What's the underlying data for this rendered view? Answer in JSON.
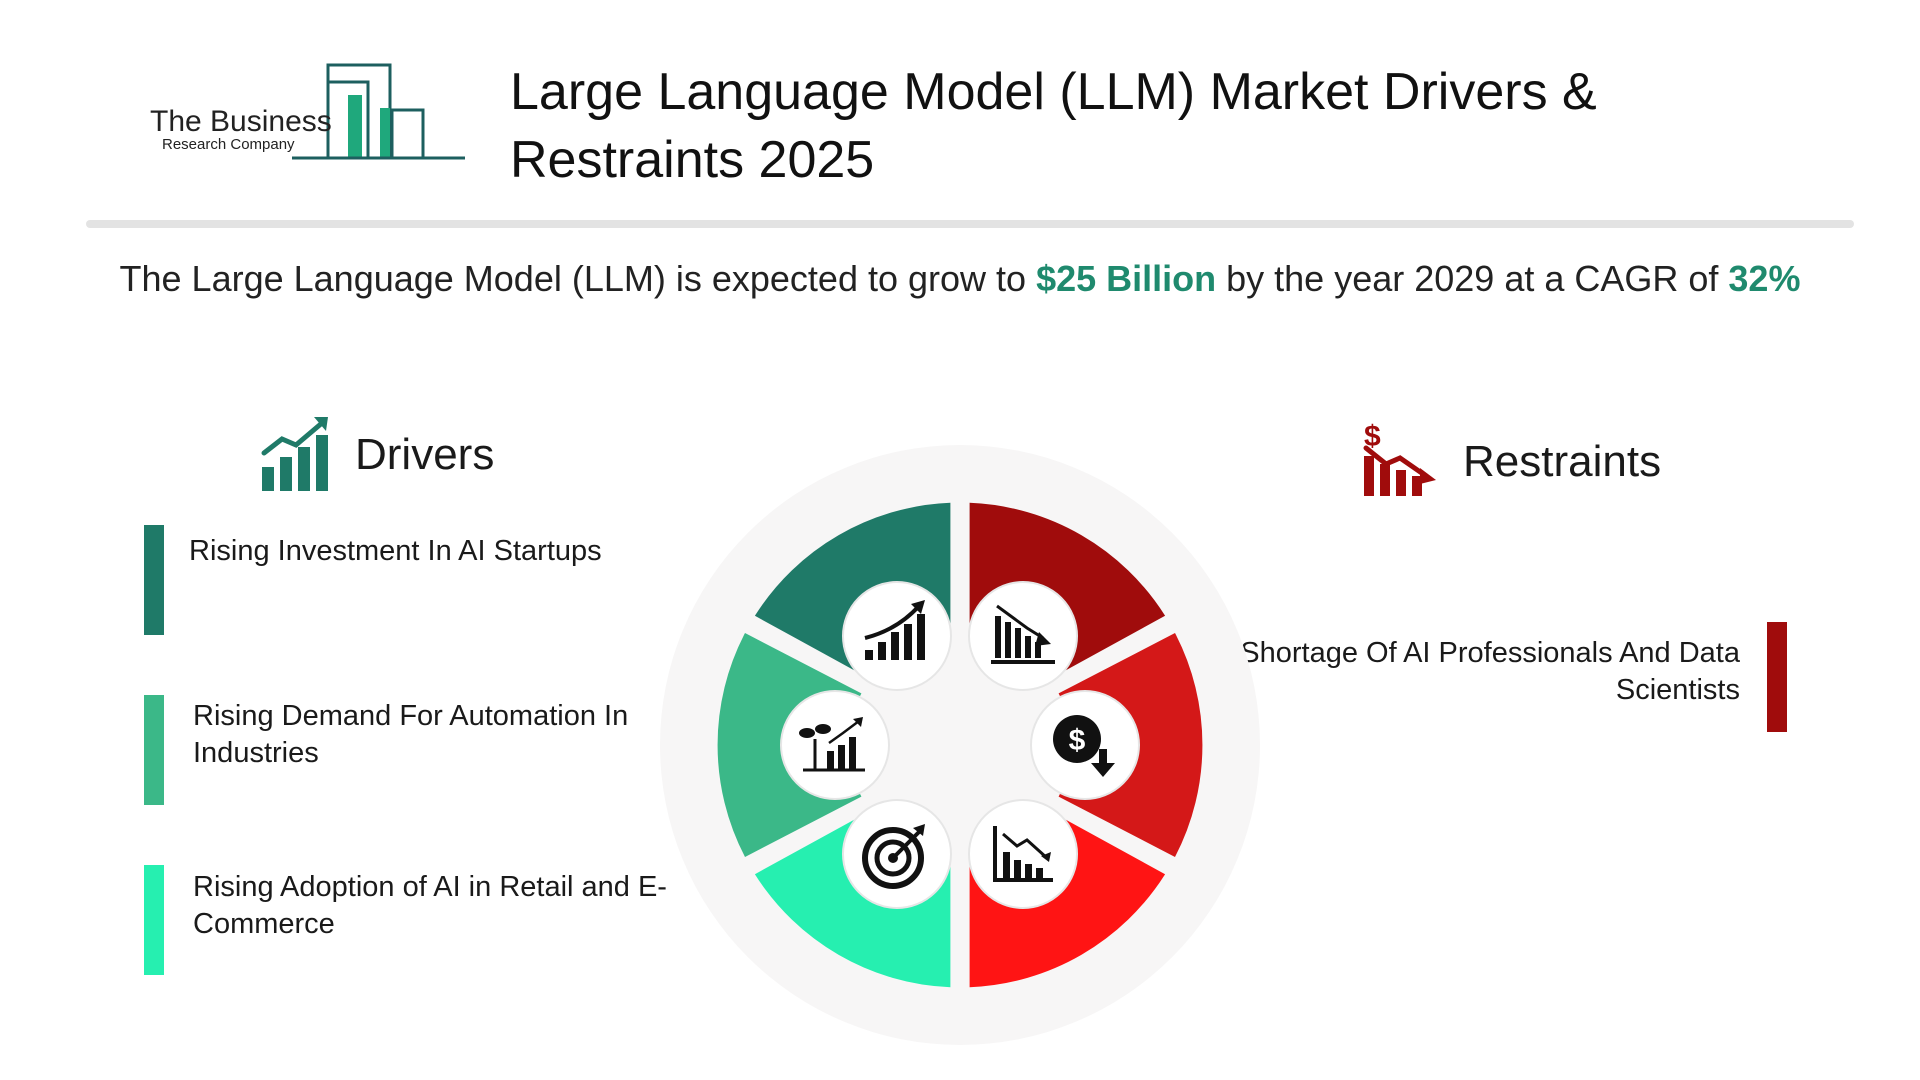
{
  "logo": {
    "line1": "The Business",
    "line2": "Research Company"
  },
  "header": {
    "title_line1": "Large Language Model (LLM) Market Drivers &",
    "title_line2": "Restraints 2025"
  },
  "subtitle": {
    "part1": "The Large Language Model (LLM) is expected to grow to ",
    "value": "$25 Billion",
    "part2": " by the year 2029 at a CAGR of  ",
    "cagr": "32%"
  },
  "drivers": {
    "title": "Drivers",
    "icon": "growth-bar-chart-icon",
    "items": [
      {
        "text": "Rising Investment In AI Startups",
        "color": "#1f7a68"
      },
      {
        "text": "Rising Demand For Automation In Industries",
        "color": "#3bb888"
      },
      {
        "text": "Rising Adoption of AI in Retail and E-Commerce",
        "color": "#26efb0"
      }
    ]
  },
  "restraints": {
    "title": "Restraints",
    "icon": "declining-dollar-chart-icon",
    "items": [
      {
        "text": "Shortage Of AI Professionals And Data Scientists",
        "color": "#a00c0c"
      }
    ]
  },
  "wheel": {
    "left_colors": [
      "#1f7a68",
      "#3bb888",
      "#26efb0"
    ],
    "right_colors": [
      "#a00c0c",
      "#d41818",
      "#ff1414"
    ],
    "icons": [
      "growth-chart-icon",
      "declining-bar-chart-icon",
      "dollar-down-icon",
      "falling-chart-icon",
      "target-icon",
      "plant-growth-chart-icon"
    ]
  },
  "colors": {
    "accent": "#1f8a6e",
    "divider": "#e3e3e3"
  }
}
